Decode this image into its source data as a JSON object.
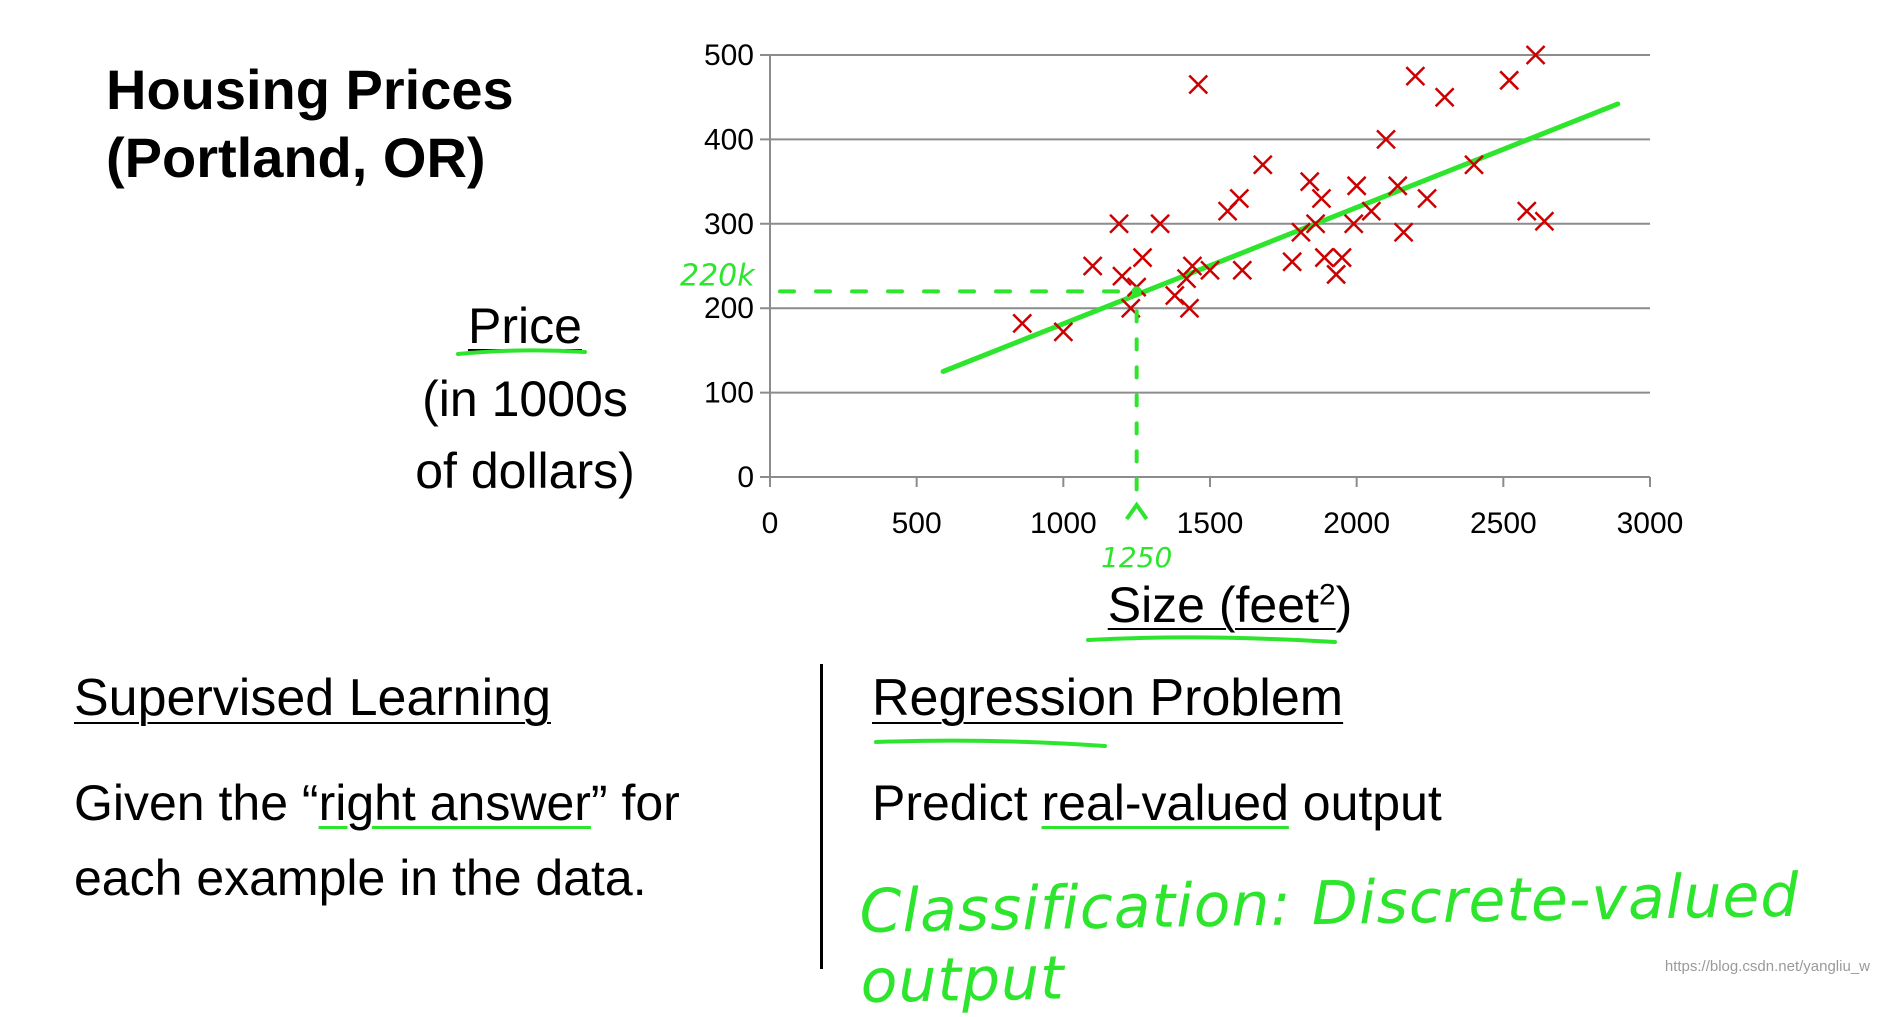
{
  "slide": {
    "title": "Housing Prices\n(Portland, OR)",
    "ylabel_main": "Price",
    "ylabel_sub1": "(in 1000s",
    "ylabel_sub2": "of dollars)",
    "xlabel_main": "Size (feet",
    "xlabel_sup": "2",
    "xlabel_end": ")",
    "left_heading": "Supervised Learning",
    "left_body_pre": "Given the “",
    "left_body_em": "right answer",
    "left_body_post": "” for",
    "left_body_line2": "each example in the data.",
    "right_heading": "Regression Problem",
    "right_body_pre": "Predict ",
    "right_body_em": "real-valued",
    "right_body_post": " output",
    "handwritten_note": "Classification: Discrete-valued output",
    "annotation_price": "220k",
    "annotation_size": "1250",
    "watermark": "https://blog.csdn.net/yangliu_w"
  },
  "colors": {
    "marker": "#cc0000",
    "annotation": "#2ee52e",
    "grid": "#8c8c8c"
  },
  "chart_data": {
    "type": "scatter",
    "title": "Housing Prices (Portland, OR)",
    "xlabel": "Size (feet2)",
    "ylabel": "Price (in 1000s of dollars)",
    "xlim": [
      0,
      3000
    ],
    "ylim": [
      0,
      500
    ],
    "xticks": [
      0,
      500,
      1000,
      1500,
      2000,
      2500,
      3000
    ],
    "yticks": [
      0,
      100,
      200,
      300,
      400,
      500
    ],
    "grid": "horizontal",
    "marker": "x",
    "points": [
      [
        860,
        182
      ],
      [
        1000,
        172
      ],
      [
        1100,
        250
      ],
      [
        1190,
        300
      ],
      [
        1200,
        238
      ],
      [
        1230,
        200
      ],
      [
        1250,
        225
      ],
      [
        1270,
        260
      ],
      [
        1330,
        300
      ],
      [
        1380,
        215
      ],
      [
        1420,
        235
      ],
      [
        1430,
        200
      ],
      [
        1440,
        250
      ],
      [
        1460,
        465
      ],
      [
        1500,
        245
      ],
      [
        1560,
        315
      ],
      [
        1600,
        330
      ],
      [
        1610,
        245
      ],
      [
        1680,
        370
      ],
      [
        1780,
        255
      ],
      [
        1810,
        290
      ],
      [
        1840,
        350
      ],
      [
        1860,
        300
      ],
      [
        1880,
        330
      ],
      [
        1890,
        260
      ],
      [
        1930,
        240
      ],
      [
        1950,
        260
      ],
      [
        1990,
        300
      ],
      [
        2000,
        345
      ],
      [
        2050,
        315
      ],
      [
        2100,
        400
      ],
      [
        2140,
        345
      ],
      [
        2160,
        290
      ],
      [
        2200,
        475
      ],
      [
        2240,
        330
      ],
      [
        2300,
        450
      ],
      [
        2400,
        370
      ],
      [
        2520,
        470
      ],
      [
        2580,
        315
      ],
      [
        2610,
        500
      ],
      [
        2640,
        303
      ]
    ],
    "fit_line": [
      [
        590,
        125
      ],
      [
        2890,
        442
      ]
    ],
    "annotation_x": 1250,
    "annotation_y": 220
  }
}
